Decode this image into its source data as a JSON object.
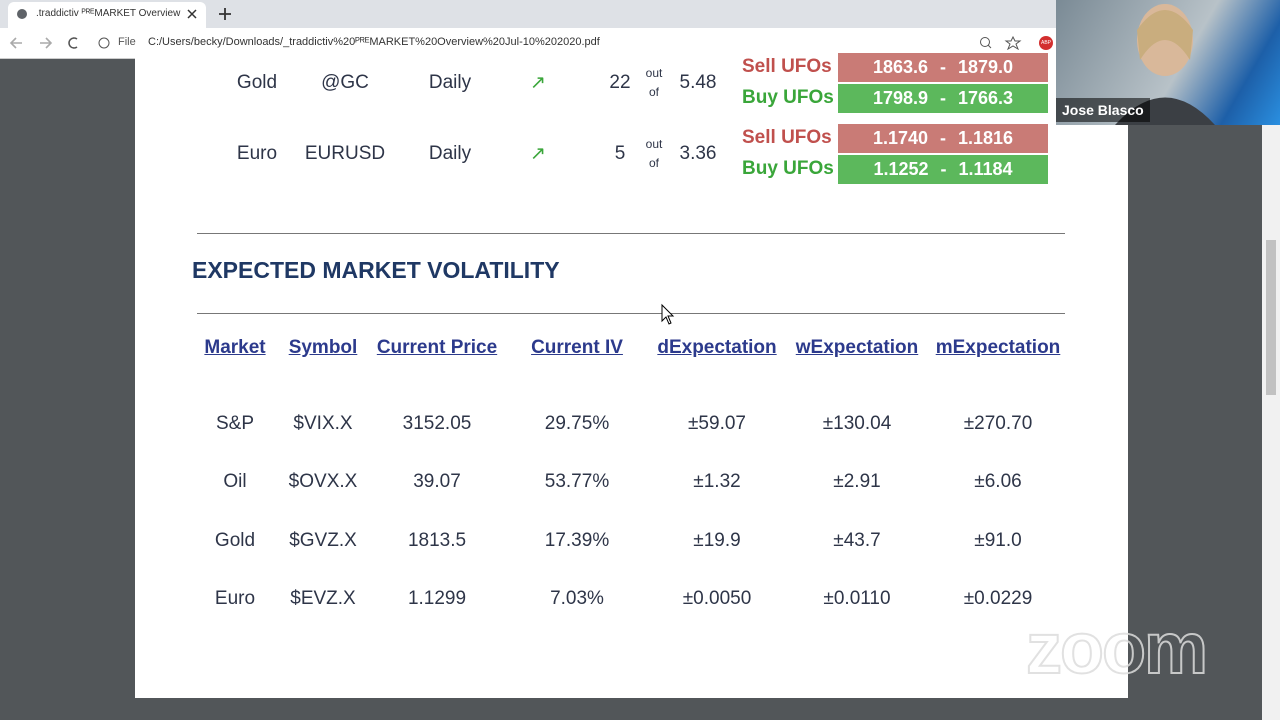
{
  "browser": {
    "tab_title": ".traddictiv ᴾᴿᴱMARKET Overview",
    "url_scheme": "File",
    "url": "C:/Users/becky/Downloads/_traddictiv%20ᴾᴿᴱMARKET%20Overview%20Jul-10%202020.pdf",
    "extension_badge": "ABP"
  },
  "signals": {
    "out_of": [
      "out",
      "of"
    ],
    "separator": "-",
    "rows": [
      {
        "market": "Gold",
        "symbol": "@GC",
        "timeframe": "Daily",
        "trend": "↗",
        "score": "22",
        "max": "5.48",
        "sell_label": "Sell UFOs",
        "sell_range": [
          "1863.6",
          "1879.0"
        ],
        "buy_label": "Buy UFOs",
        "buy_range": [
          "1798.9",
          "1766.3"
        ]
      },
      {
        "market": "Euro",
        "symbol": "EURUSD",
        "timeframe": "Daily",
        "trend": "↗",
        "score": "5",
        "max": "3.36",
        "sell_label": "Sell UFOs",
        "sell_range": [
          "1.1740",
          "1.1816"
        ],
        "buy_label": "Buy UFOs",
        "buy_range": [
          "1.1252",
          "1.1184"
        ]
      }
    ]
  },
  "volatility": {
    "title": "EXPECTED MARKET VOLATILITY",
    "headers": [
      "Market",
      "Symbol",
      "Current Price",
      "Current IV",
      "dExpectation",
      "wExpectation",
      "mExpectation"
    ],
    "rows": [
      [
        "S&P",
        "$VIX.X",
        "3152.05",
        "29.75%",
        "±59.07",
        "±130.04",
        "±270.70"
      ],
      [
        "Oil",
        "$OVX.X",
        "39.07",
        "53.77%",
        "±1.32",
        "±2.91",
        "±6.06"
      ],
      [
        "Gold",
        "$GVZ.X",
        "1813.5",
        "17.39%",
        "±19.9",
        "±43.7",
        "±91.0"
      ],
      [
        "Euro",
        "$EVZ.X",
        "1.1299",
        "7.03%",
        "±0.0050",
        "±0.0110",
        "±0.0229"
      ]
    ]
  },
  "meeting": {
    "participant": "Jose Blasco",
    "watermark": "zoom"
  }
}
